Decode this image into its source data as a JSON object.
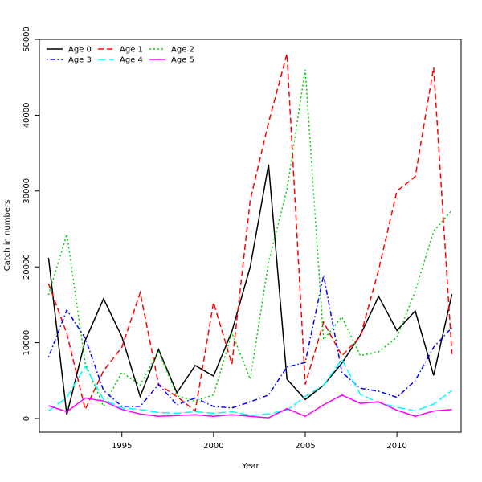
{
  "chart_data": {
    "type": "line",
    "title": "",
    "xlabel": "Year",
    "ylabel": "Catch in numbers",
    "xlim": [
      1990.5,
      2013.5
    ],
    "ylim": [
      -1800,
      50000
    ],
    "x_ticks": [
      1995,
      2000,
      2005,
      2010
    ],
    "y_ticks": [
      0,
      10000,
      20000,
      30000,
      40000,
      50000
    ],
    "grid": false,
    "legend_position": "top-left",
    "x": [
      1991,
      1992,
      1993,
      1994,
      1995,
      1996,
      1997,
      1998,
      1999,
      2000,
      2001,
      2002,
      2003,
      2004,
      2005,
      2006,
      2007,
      2008,
      2009,
      2010,
      2011,
      2012,
      2013
    ],
    "series": [
      {
        "name": "Age 0",
        "color": "#000000",
        "dash": "solid",
        "values": [
          21200,
          500,
          10300,
          15800,
          10800,
          2900,
          9100,
          3400,
          7000,
          5600,
          11500,
          20000,
          33500,
          5200,
          2500,
          4400,
          7300,
          11000,
          16100,
          11600,
          14200,
          5700,
          16400
        ]
      },
      {
        "name": "Age 1",
        "color": "#ff0000",
        "dash": "dashed",
        "values": [
          17800,
          11200,
          1200,
          6300,
          9400,
          16600,
          4500,
          2900,
          1000,
          15300,
          7200,
          28800,
          39000,
          48100,
          4500,
          12700,
          8300,
          10800,
          19600,
          30000,
          31900,
          46300,
          8500
        ]
      },
      {
        "name": "Age 2",
        "color": "#00cd00",
        "dash": "dotted",
        "values": [
          16300,
          24300,
          7300,
          1600,
          6100,
          4400,
          8900,
          3000,
          2300,
          3100,
          11300,
          5200,
          20600,
          30200,
          46000,
          10400,
          13400,
          8300,
          8800,
          10700,
          16800,
          24700,
          27500
        ]
      },
      {
        "name": "Age 3",
        "color": "#0000ff",
        "dash": "dotdash",
        "values": [
          8100,
          14300,
          10600,
          3700,
          1600,
          1600,
          4500,
          1800,
          2700,
          1600,
          1400,
          2200,
          3100,
          6800,
          7400,
          18900,
          6100,
          4000,
          3600,
          2800,
          5000,
          9400,
          12000
        ]
      },
      {
        "name": "Age 4",
        "color": "#00ffff",
        "dash": "longdash",
        "values": [
          1000,
          2800,
          6900,
          2500,
          1400,
          1200,
          800,
          700,
          900,
          700,
          900,
          400,
          600,
          1100,
          2900,
          4400,
          7800,
          3200,
          2100,
          1500,
          1000,
          1900,
          3700
        ]
      },
      {
        "name": "Age 5",
        "color": "#ff00ff",
        "dash": "solid",
        "values": [
          1700,
          900,
          2700,
          2300,
          1200,
          600,
          300,
          400,
          500,
          300,
          500,
          300,
          100,
          1300,
          300,
          1800,
          3100,
          2000,
          2200,
          1100,
          300,
          1000,
          1200
        ]
      }
    ]
  }
}
